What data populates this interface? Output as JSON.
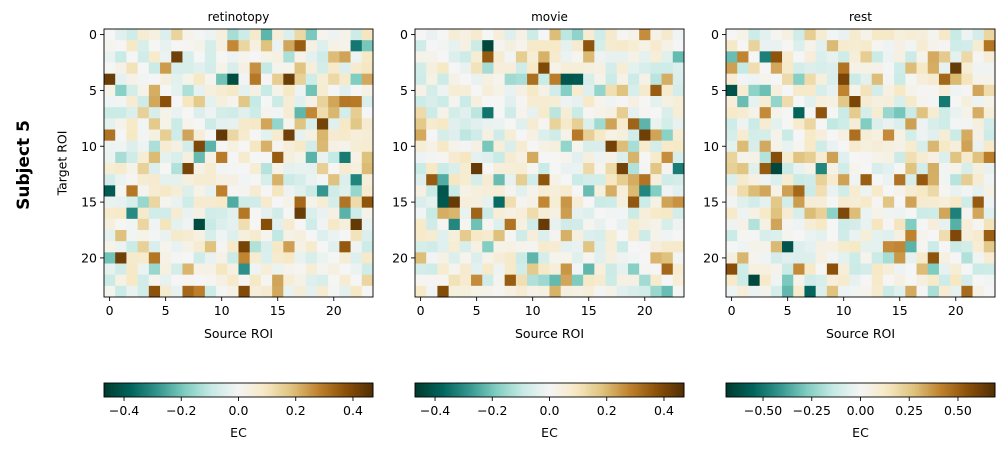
{
  "figure": {
    "row_label": "Subject 5",
    "ylabel": "Target ROI",
    "xlabel": "Source ROI",
    "colorbar_label": "EC"
  },
  "chart_data": [
    {
      "type": "heatmap",
      "title": "retinotopy",
      "xlabel": "Source ROI",
      "ylabel": "Target ROI",
      "n": 24,
      "xticks": [
        0,
        5,
        10,
        15,
        20
      ],
      "yticks": [
        0,
        5,
        10,
        15,
        20
      ],
      "colormap": "BrBG_r",
      "vmin": -0.47,
      "vmax": 0.47,
      "colorbar_ticks": [
        -0.4,
        -0.2,
        0.0,
        0.2,
        0.4
      ],
      "colorbar_tick_labels": [
        "−0.4",
        "−0.2",
        "0.0",
        "0.2",
        "0.4"
      ],
      "colorbar_label": "EC",
      "seed": 11,
      "values_note": "24x24 effective connectivity matrix (mostly near zero, sparse strong entries)"
    },
    {
      "type": "heatmap",
      "title": "movie",
      "xlabel": "Source ROI",
      "ylabel": "",
      "n": 24,
      "xticks": [
        0,
        5,
        10,
        15,
        20
      ],
      "yticks": [
        0,
        5,
        10,
        15,
        20
      ],
      "colormap": "BrBG_r",
      "vmin": -0.47,
      "vmax": 0.47,
      "colorbar_ticks": [
        -0.4,
        -0.2,
        0.0,
        0.2,
        0.4
      ],
      "colorbar_tick_labels": [
        "−0.4",
        "−0.2",
        "0.0",
        "0.2",
        "0.4"
      ],
      "colorbar_label": "EC",
      "seed": 23,
      "values_note": "24x24 effective connectivity matrix"
    },
    {
      "type": "heatmap",
      "title": "rest",
      "xlabel": "Source ROI",
      "ylabel": "",
      "n": 24,
      "xticks": [
        0,
        5,
        10,
        15,
        20
      ],
      "yticks": [
        0,
        5,
        10,
        15,
        20
      ],
      "colormap": "BrBG_r",
      "vmin": -0.69,
      "vmax": 0.69,
      "colorbar_ticks": [
        -0.5,
        -0.25,
        0.0,
        0.25,
        0.5
      ],
      "colorbar_tick_labels": [
        "−0.50",
        "−0.25",
        "0.00",
        "0.25",
        "0.50"
      ],
      "colorbar_label": "EC",
      "seed": 37,
      "values_note": "24x24 effective connectivity matrix"
    }
  ]
}
